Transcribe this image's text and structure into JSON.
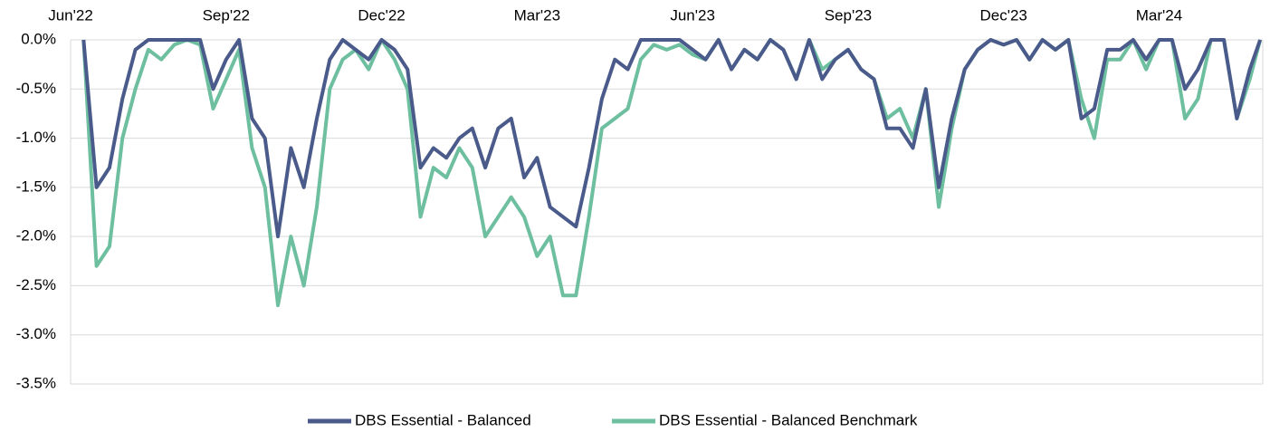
{
  "chart_data": {
    "type": "line",
    "x": [
      0.25,
      0.5,
      0.75,
      1,
      1.25,
      1.5,
      1.75,
      2,
      2.25,
      2.5,
      2.75,
      3,
      3.25,
      3.5,
      3.75,
      4,
      4.25,
      4.5,
      4.75,
      5,
      5.25,
      5.5,
      5.75,
      6,
      6.25,
      6.5,
      6.75,
      7,
      7.25,
      7.5,
      7.75,
      8,
      8.25,
      8.5,
      8.75,
      9,
      9.25,
      9.5,
      9.75,
      10,
      10.25,
      10.5,
      10.75,
      11,
      11.25,
      11.5,
      11.75,
      12,
      12.25,
      12.5,
      12.75,
      13,
      13.25,
      13.5,
      13.75,
      14,
      14.25,
      14.5,
      14.75,
      15,
      15.25,
      15.5,
      15.75,
      16,
      16.25,
      16.5,
      16.75,
      17,
      17.25,
      17.5,
      17.75,
      18,
      18.25,
      18.5,
      18.75,
      19,
      19.25,
      19.5,
      19.75,
      20,
      20.25,
      20.5,
      20.75,
      21,
      21.25,
      21.5,
      21.75,
      22,
      22.25,
      22.5,
      22.75,
      22.95
    ],
    "series": [
      {
        "name": "DBS Essential - Balanced",
        "color": "#4a5a8a",
        "values": [
          0,
          -1.5,
          -1.3,
          -0.6,
          -0.1,
          0,
          0,
          0,
          0,
          0,
          -0.5,
          -0.2,
          0,
          -0.8,
          -1.0,
          -2.0,
          -1.1,
          -1.5,
          -0.8,
          -0.2,
          0,
          -0.1,
          -0.2,
          0,
          -0.1,
          -0.3,
          -1.3,
          -1.1,
          -1.2,
          -1.0,
          -0.9,
          -1.3,
          -0.9,
          -0.8,
          -1.4,
          -1.2,
          -1.7,
          -1.8,
          -1.9,
          -1.3,
          -0.6,
          -0.2,
          -0.3,
          0,
          0,
          0,
          0,
          -0.1,
          -0.2,
          0,
          -0.3,
          -0.1,
          -0.2,
          0,
          -0.1,
          -0.4,
          0,
          -0.4,
          -0.2,
          -0.1,
          -0.3,
          -0.4,
          -0.9,
          -0.9,
          -1.1,
          -0.5,
          -1.5,
          -0.8,
          -0.3,
          -0.1,
          0,
          -0.05,
          0,
          -0.2,
          0,
          -0.1,
          0,
          -0.8,
          -0.7,
          -0.1,
          -0.1,
          0,
          -0.2,
          0,
          0,
          -0.5,
          -0.3,
          0,
          0,
          -0.8,
          -0.3,
          0
        ]
      },
      {
        "name": "DBS Essential - Balanced Benchmark",
        "color": "#6dbfa0",
        "values": [
          0,
          -2.3,
          -2.1,
          -1.0,
          -0.5,
          -0.1,
          -0.2,
          -0.05,
          0,
          -0.05,
          -0.7,
          -0.4,
          -0.1,
          -1.1,
          -1.5,
          -2.7,
          -2.0,
          -2.5,
          -1.7,
          -0.5,
          -0.2,
          -0.1,
          -0.3,
          0,
          -0.2,
          -0.5,
          -1.8,
          -1.3,
          -1.4,
          -1.1,
          -1.3,
          -2.0,
          -1.8,
          -1.6,
          -1.8,
          -2.2,
          -2.0,
          -2.6,
          -2.6,
          -1.8,
          -0.9,
          -0.8,
          -0.7,
          -0.2,
          -0.05,
          -0.1,
          -0.05,
          -0.15,
          -0.2,
          0,
          -0.3,
          -0.1,
          -0.2,
          0,
          -0.1,
          -0.4,
          0,
          -0.3,
          -0.2,
          -0.1,
          -0.3,
          -0.4,
          -0.8,
          -0.7,
          -1.0,
          -0.5,
          -1.7,
          -0.9,
          -0.3,
          -0.1,
          0,
          -0.05,
          0,
          -0.2,
          0,
          -0.1,
          0,
          -0.6,
          -1.0,
          -0.2,
          -0.2,
          0,
          -0.3,
          0,
          0,
          -0.8,
          -0.6,
          0,
          0,
          -0.8,
          -0.4,
          0
        ]
      }
    ],
    "xlim": [
      0,
      23
    ],
    "xticks": [
      {
        "value": 0,
        "label": "Jun'22"
      },
      {
        "value": 3,
        "label": "Sep'22"
      },
      {
        "value": 6,
        "label": "Dec'22"
      },
      {
        "value": 9,
        "label": "Mar'23"
      },
      {
        "value": 12,
        "label": "Jun'23"
      },
      {
        "value": 15,
        "label": "Sep'23"
      },
      {
        "value": 18,
        "label": "Dec'23"
      },
      {
        "value": 21,
        "label": "Mar'24"
      }
    ],
    "ylim": [
      -3.5,
      0
    ],
    "yticks": [
      {
        "value": 0,
        "label": "0.0%"
      },
      {
        "value": -0.5,
        "label": "-0.5%"
      },
      {
        "value": -1.0,
        "label": "-1.0%"
      },
      {
        "value": -1.5,
        "label": "-1.5%"
      },
      {
        "value": -2.0,
        "label": "-2.0%"
      },
      {
        "value": -2.5,
        "label": "-2.5%"
      },
      {
        "value": -3.0,
        "label": "-3.0%"
      },
      {
        "value": -3.5,
        "label": "-3.5%"
      }
    ],
    "grid": true,
    "legend": "bottom"
  }
}
